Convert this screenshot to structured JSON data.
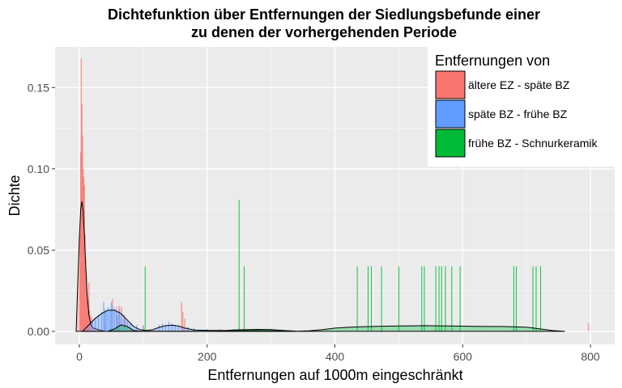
{
  "chart_data": {
    "type": "histogram-density",
    "title": [
      "Dichtefunktion über Entfernungen der Siedlungsbefunde einer",
      "zu denen der vorhergehenden Periode"
    ],
    "xlabel": "Entfernungen auf 1000m eingeschränkt",
    "ylabel": "Dichte",
    "xlim": [
      -38,
      838
    ],
    "ylim": [
      -0.008,
      0.175
    ],
    "x_ticks": [
      0,
      200,
      400,
      600,
      800
    ],
    "x_tick_labels": [
      "0",
      "200",
      "400",
      "600",
      "800"
    ],
    "y_ticks": [
      0,
      0.05,
      0.1,
      0.15
    ],
    "y_tick_labels": [
      "0.00",
      "0.05",
      "0.10",
      "0.15"
    ],
    "grid": true,
    "legend": {
      "title": "Entfernungen von",
      "position": "top-right",
      "entries": [
        {
          "label": "ältere EZ - späte BZ",
          "color": "#F8766D"
        },
        {
          "label": "späte BZ - frühe BZ",
          "color": "#619CFF"
        },
        {
          "label": "frühe BZ - Schnurkeramik",
          "color": "#00BA38"
        }
      ]
    },
    "series": [
      {
        "name": "ältere EZ - späte BZ",
        "color": "#F8766D",
        "bars": [
          [
            1,
            0.06
          ],
          [
            2,
            0.11
          ],
          [
            3,
            0.168
          ],
          [
            4,
            0.14
          ],
          [
            5,
            0.12
          ],
          [
            6,
            0.1
          ],
          [
            7,
            0.095
          ],
          [
            8,
            0.09
          ],
          [
            9,
            0.06
          ],
          [
            10,
            0.045
          ],
          [
            11,
            0.035
          ],
          [
            12,
            0.025
          ],
          [
            13,
            0.02
          ],
          [
            14,
            0.018
          ],
          [
            15,
            0.03
          ],
          [
            16,
            0.013
          ],
          [
            18,
            0.01
          ],
          [
            20,
            0.008
          ],
          [
            40,
            0.005
          ],
          [
            52,
            0.02
          ],
          [
            58,
            0.015
          ],
          [
            62,
            0.016
          ],
          [
            66,
            0.015
          ],
          [
            70,
            0.01
          ],
          [
            72,
            0.008
          ],
          [
            100,
            0.004
          ],
          [
            160,
            0.018
          ],
          [
            162,
            0.012
          ],
          [
            165,
            0.008
          ],
          [
            797,
            0.005
          ]
        ],
        "density": [
          [
            -5,
            0
          ],
          [
            -2,
            0.035
          ],
          [
            0,
            0.058
          ],
          [
            2,
            0.075
          ],
          [
            4,
            0.08
          ],
          [
            6,
            0.074
          ],
          [
            8,
            0.058
          ],
          [
            10,
            0.04
          ],
          [
            12,
            0.024
          ],
          [
            15,
            0.01
          ],
          [
            18,
            0.004
          ],
          [
            22,
            0.002
          ],
          [
            30,
            0.001
          ],
          [
            40,
            0
          ]
        ]
      },
      {
        "name": "späte BZ - frühe BZ",
        "color": "#619CFF",
        "bars": [
          [
            20,
            0.006
          ],
          [
            25,
            0.008
          ],
          [
            30,
            0.01
          ],
          [
            35,
            0.012
          ],
          [
            38,
            0.018
          ],
          [
            40,
            0.014
          ],
          [
            42,
            0.012
          ],
          [
            45,
            0.015
          ],
          [
            48,
            0.013
          ],
          [
            50,
            0.018
          ],
          [
            52,
            0.016
          ],
          [
            55,
            0.014
          ],
          [
            58,
            0.012
          ],
          [
            60,
            0.01
          ],
          [
            63,
            0.014
          ],
          [
            66,
            0.008
          ],
          [
            70,
            0.01
          ],
          [
            75,
            0.006
          ],
          [
            80,
            0.005
          ],
          [
            90,
            0.004
          ],
          [
            100,
            0.003
          ],
          [
            125,
            0.004
          ],
          [
            130,
            0.005
          ],
          [
            135,
            0.004
          ],
          [
            140,
            0.006
          ],
          [
            145,
            0.005
          ],
          [
            150,
            0.004
          ],
          [
            155,
            0.003
          ],
          [
            170,
            0.003
          ],
          [
            180,
            0.002
          ],
          [
            200,
            0.0015
          ],
          [
            220,
            0.0015
          ],
          [
            240,
            0.001
          ],
          [
            260,
            0.001
          ],
          [
            280,
            0.0015
          ],
          [
            300,
            0.0015
          ],
          [
            320,
            0.001
          ],
          [
            330,
            0.001
          ]
        ],
        "density": [
          [
            5,
            0
          ],
          [
            15,
            0.004
          ],
          [
            25,
            0.008
          ],
          [
            35,
            0.011
          ],
          [
            45,
            0.013
          ],
          [
            55,
            0.013
          ],
          [
            65,
            0.011
          ],
          [
            75,
            0.007
          ],
          [
            85,
            0.003
          ],
          [
            95,
            0.001
          ],
          [
            105,
            0.0005
          ],
          [
            115,
            0.001
          ],
          [
            125,
            0.0025
          ],
          [
            135,
            0.0035
          ],
          [
            145,
            0.0038
          ],
          [
            155,
            0.0033
          ],
          [
            165,
            0.002
          ],
          [
            180,
            0.0008
          ],
          [
            200,
            0.0006
          ],
          [
            230,
            0.0005
          ],
          [
            260,
            0.0006
          ],
          [
            300,
            0.0004
          ],
          [
            340,
            0
          ]
        ]
      },
      {
        "name": "frühe BZ - Schnurkeramik",
        "color": "#00BA38",
        "bars": [
          [
            103,
            0.04
          ],
          [
            250,
            0.081
          ],
          [
            258,
            0.04
          ],
          [
            435,
            0.04
          ],
          [
            452,
            0.04
          ],
          [
            457,
            0.04
          ],
          [
            473,
            0.04
          ],
          [
            500,
            0.04
          ],
          [
            536,
            0.04
          ],
          [
            540,
            0.04
          ],
          [
            558,
            0.04
          ],
          [
            563,
            0.04
          ],
          [
            567,
            0.04
          ],
          [
            573,
            0.04
          ],
          [
            583,
            0.04
          ],
          [
            596,
            0.04
          ],
          [
            680,
            0.04
          ],
          [
            684,
            0.04
          ],
          [
            710,
            0.04
          ],
          [
            715,
            0.04
          ],
          [
            722,
            0.04
          ]
        ],
        "density": [
          [
            45,
            0
          ],
          [
            55,
            0.0015
          ],
          [
            65,
            0.004
          ],
          [
            75,
            0.003
          ],
          [
            85,
            0.0005
          ],
          [
            95,
            0
          ],
          [
            220,
            0
          ],
          [
            240,
            0.0008
          ],
          [
            260,
            0.001
          ],
          [
            280,
            0.0012
          ],
          [
            300,
            0.0011
          ],
          [
            320,
            0.0005
          ],
          [
            340,
            0.0001
          ],
          [
            360,
            0.0003
          ],
          [
            380,
            0.001
          ],
          [
            400,
            0.002
          ],
          [
            420,
            0.0025
          ],
          [
            440,
            0.0028
          ],
          [
            460,
            0.003
          ],
          [
            480,
            0.0032
          ],
          [
            500,
            0.0033
          ],
          [
            520,
            0.0034
          ],
          [
            540,
            0.0035
          ],
          [
            560,
            0.0034
          ],
          [
            580,
            0.0033
          ],
          [
            600,
            0.0032
          ],
          [
            620,
            0.0031
          ],
          [
            640,
            0.003
          ],
          [
            660,
            0.003
          ],
          [
            680,
            0.0028
          ],
          [
            700,
            0.0026
          ],
          [
            720,
            0.0016
          ],
          [
            740,
            0.0005
          ],
          [
            760,
            0
          ]
        ]
      }
    ]
  }
}
